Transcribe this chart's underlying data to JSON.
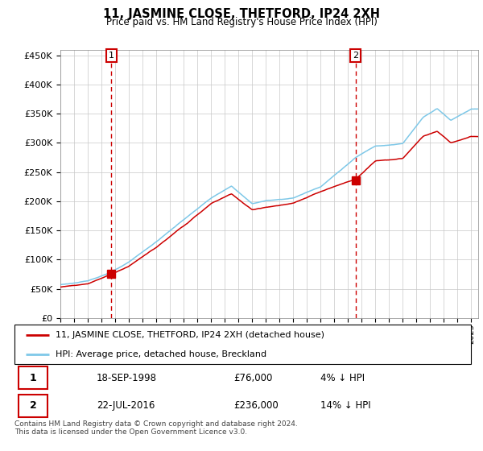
{
  "title": "11, JASMINE CLOSE, THETFORD, IP24 2XH",
  "subtitle": "Price paid vs. HM Land Registry's House Price Index (HPI)",
  "ylabel_ticks": [
    "£0",
    "£50K",
    "£100K",
    "£150K",
    "£200K",
    "£250K",
    "£300K",
    "£350K",
    "£400K",
    "£450K"
  ],
  "ytick_values": [
    0,
    50000,
    100000,
    150000,
    200000,
    250000,
    300000,
    350000,
    400000,
    450000
  ],
  "ylim": [
    0,
    460000
  ],
  "xlim_start": 1995.0,
  "xlim_end": 2025.5,
  "sale1_date": 1998.72,
  "sale1_price": 76000,
  "sale2_date": 2016.55,
  "sale2_price": 236000,
  "hpi_color": "#7ec8e8",
  "price_color": "#cc0000",
  "dashed_line_color": "#cc0000",
  "marker_color": "#cc0000",
  "legend_label_price": "11, JASMINE CLOSE, THETFORD, IP24 2XH (detached house)",
  "legend_label_hpi": "HPI: Average price, detached house, Breckland",
  "table_row1": [
    "1",
    "18-SEP-1998",
    "£76,000",
    "4% ↓ HPI"
  ],
  "table_row2": [
    "2",
    "22-JUL-2016",
    "£236,000",
    "14% ↓ HPI"
  ],
  "footer": "Contains HM Land Registry data © Crown copyright and database right 2024.\nThis data is licensed under the Open Government Licence v3.0.",
  "background_color": "#ffffff",
  "grid_color": "#c8c8c8",
  "hpi_knots_x": [
    1995.0,
    1997.0,
    1998.72,
    2000.0,
    2002.0,
    2004.0,
    2006.0,
    2007.5,
    2009.0,
    2010.0,
    2012.0,
    2014.0,
    2016.55,
    2018.0,
    2020.0,
    2021.5,
    2022.5,
    2023.5,
    2025.0
  ],
  "hpi_knots_y": [
    57000,
    63000,
    79000,
    95000,
    130000,
    168000,
    205000,
    225000,
    195000,
    200000,
    205000,
    225000,
    275000,
    295000,
    300000,
    345000,
    360000,
    340000,
    360000
  ],
  "price_knots_x": [
    1995.0,
    1997.0,
    1998.72,
    2000.0,
    2002.0,
    2004.0,
    2006.0,
    2007.5,
    2009.0,
    2010.0,
    2012.0,
    2014.0,
    2016.55,
    2018.0,
    2020.0,
    2021.5,
    2022.5,
    2023.5,
    2025.0
  ],
  "price_knots_y": [
    53000,
    59000,
    76000,
    90000,
    122000,
    158000,
    196000,
    213000,
    185000,
    190000,
    196000,
    215000,
    236000,
    268000,
    272000,
    310000,
    318000,
    298000,
    308000
  ]
}
